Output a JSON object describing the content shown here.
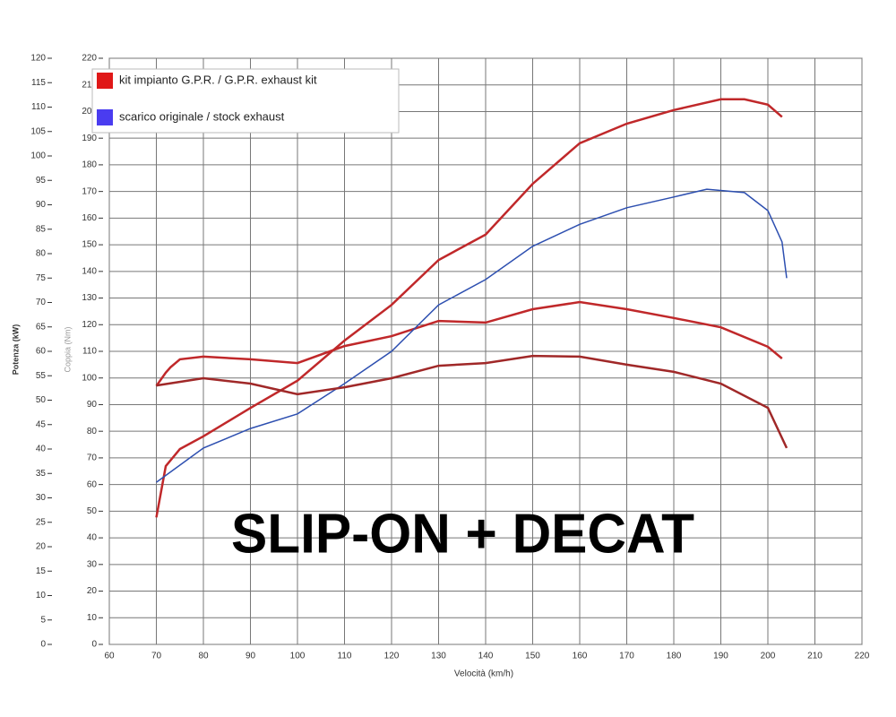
{
  "chart_data": {
    "type": "line",
    "xlabel": "Velocità (km/h)",
    "ylabel": "Potenza (kW)",
    "y2label": "Coppia (Nm)",
    "annotation": "SLIP-ON + DECAT",
    "xlim": [
      60,
      220
    ],
    "xticks": [
      60,
      70,
      80,
      90,
      100,
      110,
      120,
      130,
      140,
      150,
      160,
      170,
      180,
      190,
      200,
      210,
      220
    ],
    "ylim": [
      0,
      120
    ],
    "yticks": [
      0,
      5,
      10,
      15,
      20,
      25,
      30,
      35,
      40,
      45,
      50,
      55,
      60,
      65,
      70,
      75,
      80,
      85,
      90,
      95,
      100,
      105,
      110,
      115,
      120
    ],
    "y2lim": [
      0,
      220
    ],
    "y2ticks": [
      0,
      10,
      20,
      30,
      40,
      50,
      60,
      70,
      80,
      90,
      100,
      110,
      120,
      130,
      140,
      150,
      160,
      170,
      180,
      190,
      200,
      210,
      220
    ],
    "grid": true,
    "legend": "upper left",
    "series": [
      {
        "name": "kit impianto G.P.R. / G.P.R. exhaust kit",
        "color": "#c0282a",
        "axis": "y",
        "x": [
          70,
          72,
          75,
          80,
          90,
          100,
          110,
          120,
          130,
          140,
          150,
          160,
          170,
          180,
          190,
          195,
          200,
          203
        ],
        "values": [
          26,
          36.5,
          40,
          42.6,
          48.4,
          54,
          62.2,
          69.5,
          78.7,
          83.9,
          94.3,
          102.6,
          106.6,
          109.4,
          111.6,
          111.6,
          110.5,
          108
        ]
      },
      {
        "color": "#c0282a",
        "axis": "y2",
        "x": [
          70,
          72,
          73,
          75,
          80,
          90,
          100,
          110,
          120,
          130,
          140,
          150,
          160,
          170,
          180,
          190,
          200,
          203
        ],
        "values": [
          97,
          102,
          104,
          107,
          108,
          107,
          105.6,
          112,
          115.7,
          121.4,
          120.8,
          125.8,
          128.5,
          125.8,
          122.5,
          119,
          111.7,
          107.3
        ]
      },
      {
        "name": "scarico originale / stock exhaust",
        "color": "#2d4fb0",
        "axis": "y",
        "x": [
          70,
          80,
          90,
          100,
          110,
          120,
          130,
          140,
          150,
          160,
          170,
          180,
          187,
          195,
          200,
          203,
          204
        ],
        "values": [
          33.2,
          40.2,
          44.2,
          47.2,
          53.4,
          60,
          69.5,
          74.7,
          81.5,
          86,
          89.4,
          91.6,
          93.2,
          92.5,
          88.8,
          82.4,
          75
        ]
      },
      {
        "color": "#a02828",
        "axis": "y2",
        "x": [
          70,
          80,
          90,
          100,
          110,
          120,
          130,
          140,
          150,
          160,
          170,
          180,
          190,
          200,
          204
        ],
        "values": [
          97.2,
          99.9,
          97.9,
          93.9,
          96.5,
          99.9,
          104.6,
          105.6,
          108.3,
          108,
          105,
          102.3,
          97.9,
          88.8,
          73.7
        ]
      }
    ]
  }
}
